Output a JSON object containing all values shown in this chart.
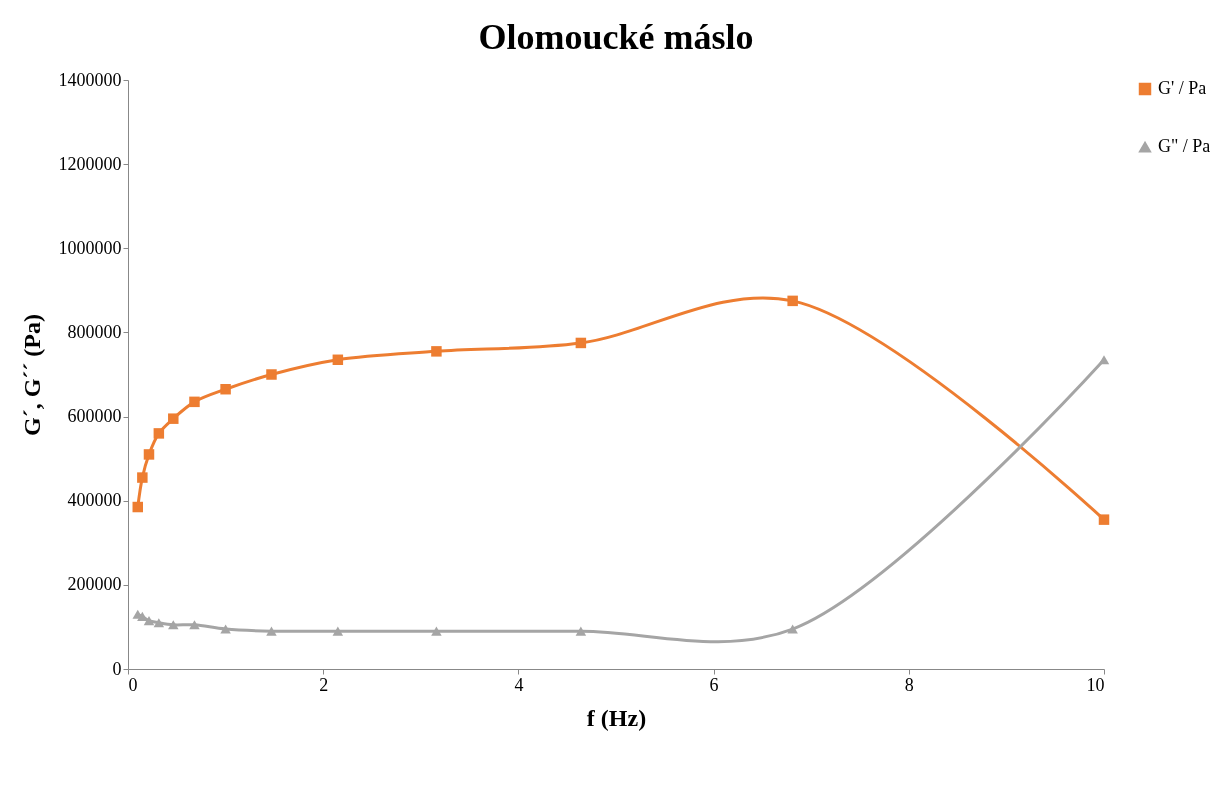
{
  "chart_data": {
    "type": "line",
    "title": "Olomoucké máslo",
    "xlabel": "f (Hz)",
    "ylabel": "G´, G´´ (Pa)",
    "x": [
      0.1,
      0.147,
      0.215,
      0.316,
      0.464,
      0.681,
      1,
      1.47,
      2.15,
      3.16,
      4.64,
      6.81,
      10
    ],
    "series": [
      {
        "name": "G' / Pa",
        "color": "#ed7d31",
        "marker": "square",
        "values": [
          385000,
          455000,
          510000,
          560000,
          595000,
          635000,
          665000,
          700000,
          735000,
          755000,
          775000,
          875000,
          355000
        ]
      },
      {
        "name": "G\" / Pa",
        "color": "#a5a5a5",
        "marker": "triangle",
        "values": [
          130000,
          125000,
          115000,
          110000,
          105000,
          105000,
          95000,
          90000,
          90000,
          90000,
          90000,
          95000,
          735000
        ]
      }
    ],
    "xlim": [
      0,
      10
    ],
    "xticks": [
      0,
      2,
      4,
      6,
      8,
      10
    ],
    "ylim": [
      0,
      1400000
    ],
    "yticks": [
      0,
      200000,
      400000,
      600000,
      800000,
      1000000,
      1200000,
      1400000
    ],
    "grid": false,
    "legend": "right",
    "line_style": "solid"
  }
}
